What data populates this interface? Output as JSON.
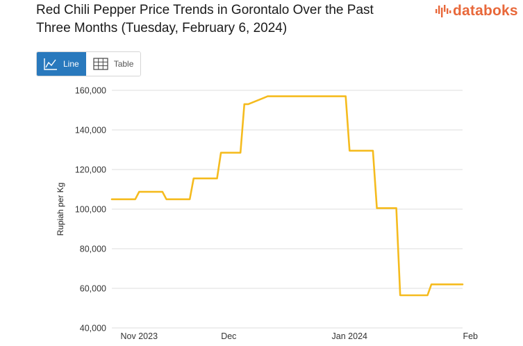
{
  "header": {
    "title": "Red Chili Pepper Price Trends in Gorontalo Over the Past Three Months (Tuesday, February 6, 2024)",
    "logo_text": "databoks",
    "logo_color": "#e8683a"
  },
  "view_toggle": {
    "line_label": "Line",
    "table_label": "Table",
    "active": "line",
    "active_color": "#2979bd"
  },
  "chart_data": {
    "type": "line",
    "title": "Red Chili Pepper Price Trends in Gorontalo Over the Past Three Months (Tuesday, February 6, 2024)",
    "xlabel": "",
    "ylabel": "Rupiah per Kg",
    "ylim": [
      40000,
      160000
    ],
    "yticks": [
      40000,
      60000,
      80000,
      100000,
      120000,
      140000,
      160000
    ],
    "ytick_labels": [
      "40,000",
      "60,000",
      "80,000",
      "100,000",
      "120,000",
      "140,000",
      "160,000"
    ],
    "xtick_labels": [
      {
        "label": "Nov 2023",
        "day": 7
      },
      {
        "label": "Dec",
        "day": 30
      },
      {
        "label": "Jan 2024",
        "day": 61
      },
      {
        "label": "Feb",
        "day": 92
      }
    ],
    "grid": true,
    "line_color": "#f5bb1e",
    "series": [
      {
        "name": "Red Chili Pepper",
        "x": [
          0,
          6,
          7,
          13,
          14,
          20,
          21,
          27,
          28,
          33,
          34,
          35,
          40,
          41,
          60,
          61,
          67,
          68,
          73,
          74,
          75,
          81,
          82,
          90
        ],
        "values": [
          105000,
          105000,
          108750,
          108750,
          105000,
          105000,
          115500,
          115500,
          128500,
          128500,
          153000,
          153000,
          157000,
          157000,
          157000,
          129500,
          129500,
          100500,
          100500,
          56500,
          56500,
          56500,
          62000,
          62000
        ]
      }
    ]
  }
}
